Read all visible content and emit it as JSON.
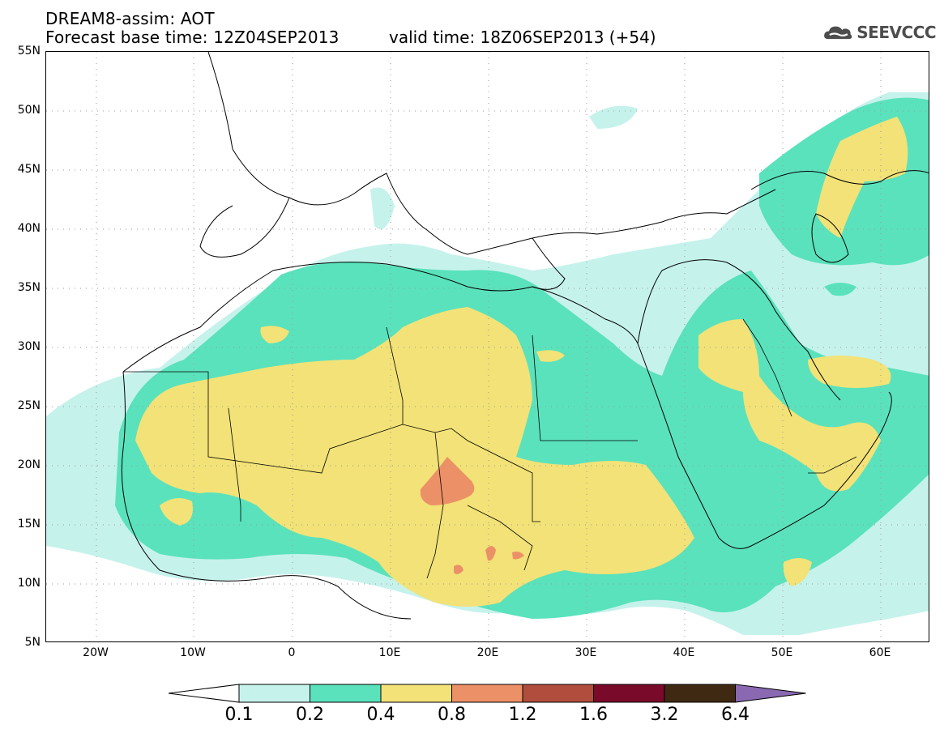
{
  "header": {
    "title": "DREAM8-assim: AOT",
    "base_time": "Forecast base time: 12Z04SEP2013",
    "valid_time": "valid time: 18Z06SEP2013 (+54)"
  },
  "logo": {
    "text": "SEEVCCC",
    "icon": "cloud-icon"
  },
  "axes": {
    "lat_labels": [
      "55N",
      "50N",
      "45N",
      "40N",
      "35N",
      "30N",
      "25N",
      "20N",
      "15N",
      "10N",
      "5N"
    ],
    "lon_labels": [
      "20W",
      "10W",
      "0",
      "10E",
      "20E",
      "30E",
      "40E",
      "50E",
      "60E"
    ]
  },
  "colorbar": {
    "labels": [
      "0.1",
      "0.2",
      "0.4",
      "0.8",
      "1.2",
      "1.6",
      "3.2",
      "6.4"
    ],
    "colors": [
      "#c6f2ec",
      "#5ae2bc",
      "#f2e277",
      "#ec9167",
      "#b04d3d",
      "#7a0a2a",
      "#3f2912",
      "#8a68b2"
    ]
  },
  "map_colors": {
    "level_0_1": "#c6f2ec",
    "level_0_2": "#5ae2bc",
    "level_0_4": "#f2e277",
    "level_0_8": "#ec9167",
    "coastline": "#000000"
  }
}
